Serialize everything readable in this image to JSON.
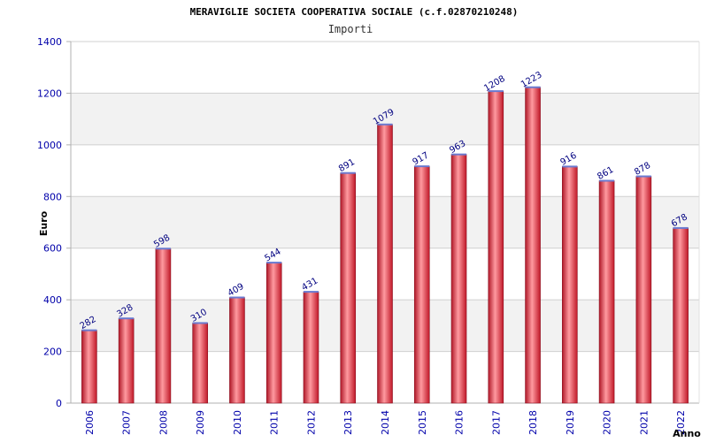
{
  "chart_data": {
    "type": "bar",
    "title": "MERAVIGLIE SOCIETA COOPERATIVA SOCIALE (c.f.02870210248)",
    "subtitle": "Importi",
    "xlabel": "Anno",
    "ylabel": "Euro",
    "categories": [
      "2006",
      "2007",
      "2008",
      "2009",
      "2010",
      "2011",
      "2012",
      "2013",
      "2014",
      "2015",
      "2016",
      "2017",
      "2018",
      "2019",
      "2020",
      "2021",
      "2022"
    ],
    "values": [
      282,
      328,
      598,
      310,
      409,
      544,
      431,
      891,
      1079,
      917,
      963,
      1208,
      1223,
      916,
      861,
      878,
      678
    ],
    "ylim": [
      0,
      1400
    ],
    "yticks": [
      0,
      200,
      400,
      600,
      800,
      1000,
      1200,
      1400
    ],
    "grid": true,
    "legend": "none",
    "colors": {
      "bar": "#e8303a",
      "bar_highlight": "#ff9aa0",
      "bar_edge": "#8a1020",
      "bar_cap": "#6a7ad0",
      "band": "#f2f2f2",
      "gridline": "#d0d0d0",
      "axis": "#b0b0b0",
      "tick_text": "#0000aa",
      "data_label": "#000080"
    }
  }
}
